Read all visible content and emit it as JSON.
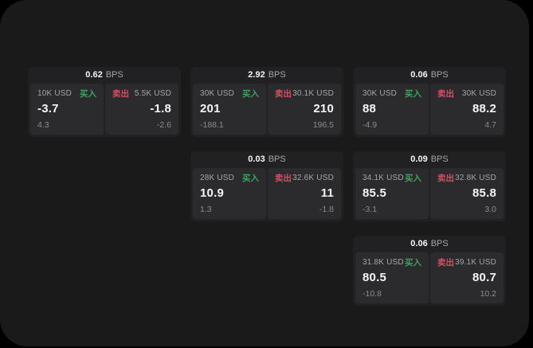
{
  "page": {
    "bps_suffix": "BPS",
    "buy_label": "买入",
    "sell_label": "卖出"
  },
  "colors": {
    "outer": "#000000",
    "background": "#1a1a1b",
    "card": "#212124",
    "panel": "#2b2b2e",
    "buy_green": "#41a05f",
    "sell_red": "#d15064",
    "value_text": "#f5f5f5",
    "muted_text": "#a5a5a5",
    "sub_text": "#8c8c8c"
  },
  "cards": [
    {
      "bps": "0.62",
      "buy": {
        "amount": "10K USD",
        "value": "-3.7",
        "sub": "4.3"
      },
      "sell": {
        "amount": "5.5K USD",
        "value": "-1.8",
        "sub": "-2.6"
      }
    },
    {
      "bps": "2.92",
      "buy": {
        "amount": "30K USD",
        "value": "201",
        "sub": "-188.1"
      },
      "sell": {
        "amount": "30.1K USD",
        "value": "210",
        "sub": "196.5"
      }
    },
    {
      "bps": "0.06",
      "buy": {
        "amount": "30K USD",
        "value": "88",
        "sub": "-4.9"
      },
      "sell": {
        "amount": "30K USD",
        "value": "88.2",
        "sub": "4.7"
      }
    },
    {
      "bps": "0.03",
      "buy": {
        "amount": "28K USD",
        "value": "10.9",
        "sub": "1.3"
      },
      "sell": {
        "amount": "32.6K USD",
        "value": "11",
        "sub": "-1.8"
      }
    },
    {
      "bps": "0.09",
      "buy": {
        "amount": "34.1K USD",
        "value": "85.5",
        "sub": "-3.1"
      },
      "sell": {
        "amount": "32.8K USD",
        "value": "85.8",
        "sub": "3.0"
      }
    },
    {
      "bps": "0.06",
      "buy": {
        "amount": "31.8K USD",
        "value": "80.5",
        "sub": "-10.8"
      },
      "sell": {
        "amount": "39.1K USD",
        "value": "80.7",
        "sub": "10.2"
      }
    }
  ]
}
